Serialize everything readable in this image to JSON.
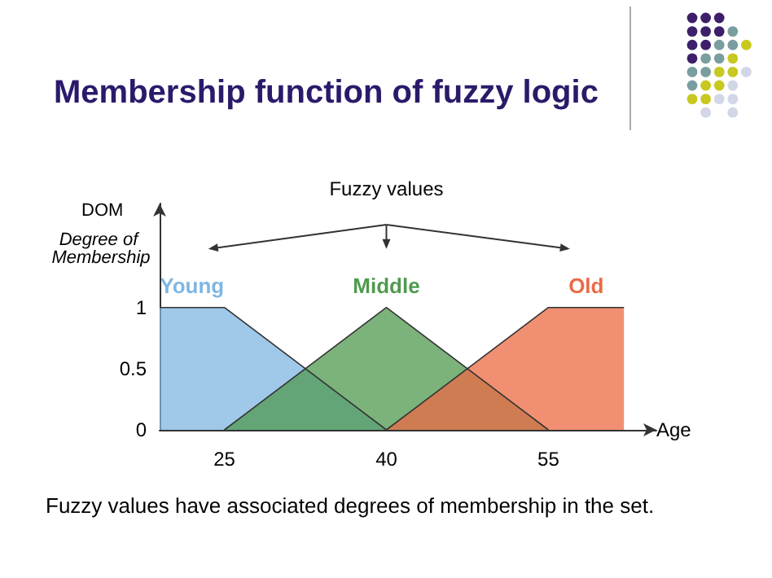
{
  "chart_data": {
    "type": "area",
    "title": "Membership function of fuzzy logic",
    "xlabel": "Age",
    "ylabel": "DOM",
    "annotations": [
      "Fuzzy values",
      "Degree of Membership",
      "Fuzzy values have associated degrees of membership in the set."
    ],
    "series": [
      {
        "name": "Young",
        "color": "#7fb6e2",
        "x": [
          19,
          25,
          40
        ],
        "values": [
          1,
          1,
          0
        ]
      },
      {
        "name": "Middle",
        "color": "#4f9a4f",
        "x": [
          25,
          40,
          55
        ],
        "values": [
          0,
          1,
          0
        ]
      },
      {
        "name": "Old",
        "color": "#ec6a44",
        "x": [
          40,
          55,
          62
        ],
        "values": [
          0,
          1,
          1
        ]
      }
    ],
    "xlim": [
      19,
      65
    ],
    "xticks": [
      25,
      40,
      55
    ],
    "ylim": [
      0,
      1.85
    ],
    "yticks": [
      0,
      0.5,
      1
    ],
    "grid": false,
    "legend": "top",
    "marker": "none"
  }
}
